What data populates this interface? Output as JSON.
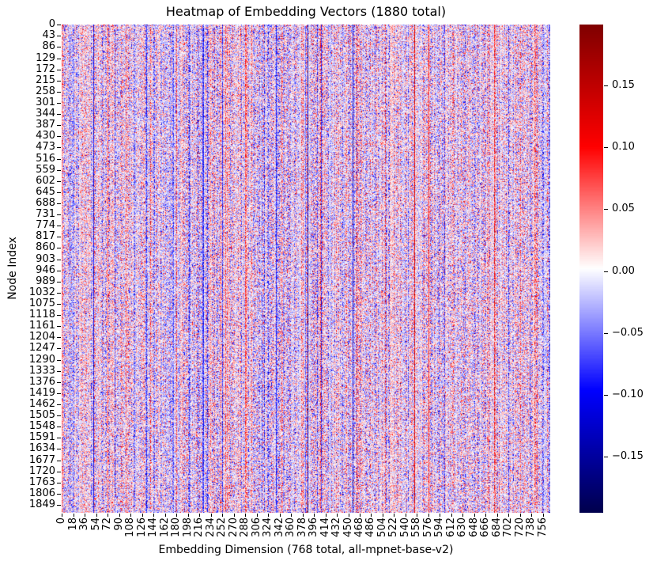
{
  "figure": {
    "background": "#ffffff",
    "text_color": "#000000"
  },
  "chart_data": {
    "type": "heatmap",
    "title": "Heatmap of Embedding Vectors (1880 total)",
    "xlabel": "Embedding Dimension (768 total, all-mpnet-base-v2)",
    "ylabel": "Node Index",
    "n_rows": 1880,
    "n_cols": 768,
    "x_ticks": [
      0,
      18,
      36,
      54,
      72,
      90,
      108,
      126,
      144,
      162,
      180,
      198,
      216,
      234,
      252,
      270,
      288,
      306,
      324,
      342,
      360,
      378,
      396,
      414,
      432,
      450,
      468,
      486,
      504,
      522,
      540,
      558,
      576,
      594,
      612,
      630,
      648,
      666,
      684,
      702,
      720,
      738,
      756
    ],
    "y_ticks": [
      0,
      43,
      86,
      129,
      172,
      215,
      258,
      301,
      344,
      387,
      430,
      473,
      516,
      559,
      602,
      645,
      688,
      731,
      774,
      817,
      860,
      903,
      946,
      989,
      1032,
      1075,
      1118,
      1161,
      1204,
      1247,
      1290,
      1333,
      1376,
      1419,
      1462,
      1505,
      1548,
      1591,
      1634,
      1677,
      1720,
      1763,
      1806,
      1849
    ],
    "grid": false,
    "legend": "colorbar-right",
    "colorbar": {
      "colormap": "seismic",
      "vmin": -0.1954,
      "vmax": 0.1993,
      "tick_values": [
        0.15,
        0.1,
        0.05,
        0.0,
        -0.05,
        -0.1,
        -0.15
      ],
      "tick_labels": [
        "0.15",
        "0.10",
        "0.05",
        "0.00",
        "−0.05",
        "−0.10",
        "−0.15"
      ],
      "gradient_stops": [
        {
          "pos": 0.0,
          "color": "#00004d"
        },
        {
          "pos": 0.25,
          "color": "#0000ff"
        },
        {
          "pos": 0.5,
          "color": "#ffffff"
        },
        {
          "pos": 0.75,
          "color": "#ff0000"
        },
        {
          "pos": 1.0,
          "color": "#800000"
        }
      ]
    },
    "appearance": {
      "description": "Dense noise matrix of small positive (red) and negative (blue) values near 0 with per-dimension vertical streaks; a few dimensions are strongly negative (dark blue columns) or strongly positive (red columns).",
      "typical_abs_value": 0.035
    }
  }
}
